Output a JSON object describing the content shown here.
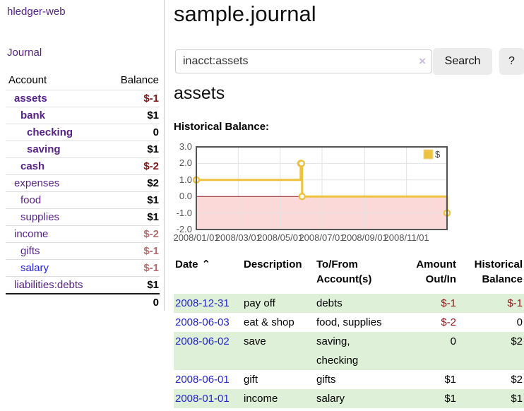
{
  "app": {
    "title": "hledger-web"
  },
  "sidebar": {
    "nav_journal_label": "Journal",
    "accounts_table": {
      "headers": [
        "Account",
        "Balance"
      ],
      "rows": [
        {
          "account": "assets",
          "indent": 1,
          "bold": true,
          "balance": "$-1",
          "balance_style": "neg-dark"
        },
        {
          "account": "bank",
          "indent": 2,
          "bold": true,
          "balance": "$1",
          "balance_style": "pos"
        },
        {
          "account": "checking",
          "indent": 3,
          "bold": true,
          "balance": "0",
          "balance_style": "pos"
        },
        {
          "account": "saving",
          "indent": 3,
          "bold": true,
          "balance": "$1",
          "balance_style": "pos"
        },
        {
          "account": "cash",
          "indent": 2,
          "bold": true,
          "balance": "$-2",
          "balance_style": "neg-dark"
        },
        {
          "account": "expenses",
          "indent": 1,
          "bold": false,
          "balance": "$2",
          "balance_style": "pos"
        },
        {
          "account": "food",
          "indent": 2,
          "bold": false,
          "balance": "$1",
          "balance_style": "pos"
        },
        {
          "account": "supplies",
          "indent": 2,
          "bold": false,
          "balance": "$1",
          "balance_style": "pos"
        },
        {
          "account": "income",
          "indent": 1,
          "bold": false,
          "balance": "$-2",
          "balance_style": "neg-light"
        },
        {
          "account": "gifts",
          "indent": 2,
          "bold": false,
          "balance": "$-1",
          "balance_style": "neg-light"
        },
        {
          "account": "salary",
          "indent": 2,
          "bold": false,
          "link_color": "blue",
          "balance": "$-1",
          "balance_style": "neg-light"
        },
        {
          "account": "liabilities:debts",
          "indent": 1,
          "bold": false,
          "balance": "$1",
          "balance_style": "pos"
        }
      ],
      "total": "0"
    }
  },
  "header": {
    "title": "sample.journal"
  },
  "search": {
    "value": "inacct:assets",
    "clear_label": "×",
    "button_label": "Search",
    "help_label": "?"
  },
  "account_page": {
    "heading": "assets",
    "chart_title": "Historical Balance:"
  },
  "chart_data": {
    "type": "line",
    "step": true,
    "title": "Historical Balance:",
    "series": [
      {
        "name": "$",
        "color": "#edc240",
        "points": [
          [
            "2008-01-01",
            1
          ],
          [
            "2008-06-01",
            2
          ],
          [
            "2008-06-02",
            2
          ],
          [
            "2008-06-03",
            0
          ],
          [
            "2008-12-31",
            -1
          ]
        ]
      }
    ],
    "x_axis": {
      "start_date": "2008-01-01",
      "end_date": "2008-12-31",
      "tick_labels": [
        "2008/01/01",
        "2008/03/01",
        "2008/05/01",
        "2008/07/01",
        "2008/09/01",
        "2008/11/01"
      ],
      "tick_days": [
        0,
        61,
        122,
        183,
        245,
        306
      ]
    },
    "y_axis": {
      "min": -2,
      "max": 3,
      "ticks": [
        3.0,
        2.0,
        1.0,
        0.0,
        -1.0,
        -2.0
      ]
    },
    "grid": true,
    "negative_region_fill": "#fbd9d9",
    "zero_line_color": "#8b1c1c",
    "border_color": "#545454",
    "legend": {
      "position": "top-right",
      "label": "$"
    }
  },
  "register_table": {
    "headers": [
      "Date",
      "Description",
      "To/From Account(s)",
      "Amount Out/In",
      "Historical Balance"
    ],
    "sort_icon": "⌃",
    "rows": [
      {
        "date": "2008-12-31",
        "description": "pay off",
        "accounts": "debts",
        "amount": "$-1",
        "amount_neg": true,
        "balance": "$-1",
        "balance_neg": true,
        "highlight": true
      },
      {
        "date": "2008-06-03",
        "description": "eat & shop",
        "accounts": "food, supplies",
        "amount": "$-2",
        "amount_neg": true,
        "balance": "0",
        "balance_neg": false,
        "highlight": false
      },
      {
        "date": "2008-06-02",
        "description": "save",
        "accounts": "saving, checking",
        "amount": "0",
        "amount_neg": false,
        "balance": "$2",
        "balance_neg": false,
        "highlight": true
      },
      {
        "date": "2008-06-01",
        "description": "gift",
        "accounts": "gifts",
        "amount": "$1",
        "amount_neg": false,
        "balance": "$2",
        "balance_neg": false,
        "highlight": false
      },
      {
        "date": "2008-01-01",
        "description": "income",
        "accounts": "salary",
        "amount": "$1",
        "amount_neg": false,
        "balance": "$1",
        "balance_neg": false,
        "highlight": true
      }
    ]
  }
}
